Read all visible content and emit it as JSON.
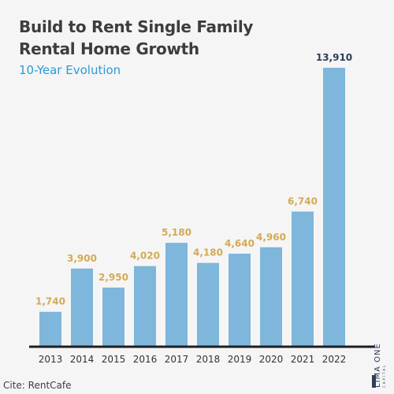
{
  "title_line1": "Build to Rent Single Family",
  "title_line2": "Rental Home Growth",
  "subtitle": "10-Year Evolution",
  "cite": "Cite: RentCafe",
  "logo": {
    "name": "LIMA ONE",
    "sub": "CAPITAL"
  },
  "colors": {
    "bar": "#7fb6db",
    "label": "#d4aa55",
    "last_label": "#2d3e57",
    "axis": "#1f1f1f",
    "title": "#3d3d3d",
    "subtitle": "#2b9bd6"
  },
  "chart_data": {
    "type": "bar",
    "categories": [
      "2013",
      "2014",
      "2015",
      "2016",
      "2017",
      "2018",
      "2019",
      "2020",
      "2021",
      "2022"
    ],
    "values": [
      1740,
      3900,
      2950,
      4020,
      5180,
      4180,
      4640,
      4960,
      6740,
      13910
    ],
    "value_labels": [
      "1,740",
      "3,900",
      "2,950",
      "4,020",
      "5,180",
      "4,180",
      "4,640",
      "4,960",
      "6,740",
      "13,910"
    ],
    "title": "Build to Rent Single Family Rental Home Growth",
    "subtitle": "10-Year Evolution",
    "ylim": [
      0,
      14500
    ],
    "grid": false
  }
}
